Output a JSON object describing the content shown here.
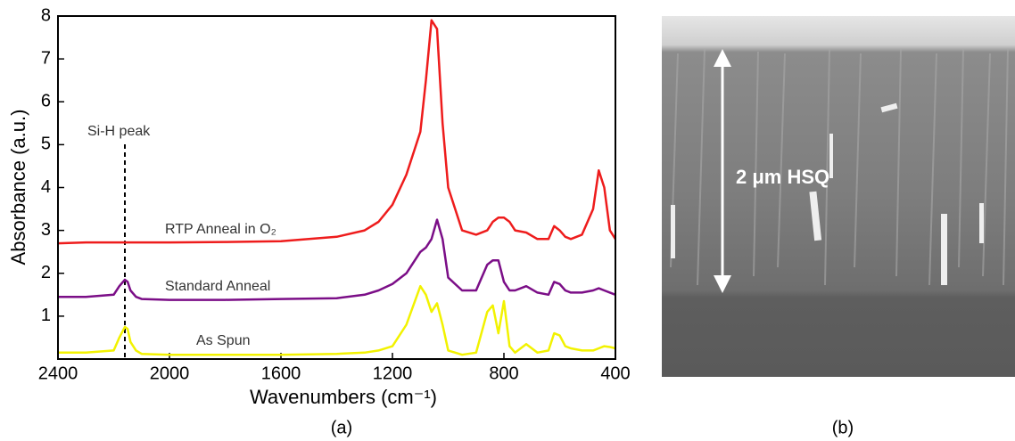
{
  "chart_data": {
    "type": "line",
    "x_label": "Wavenumbers (cm⁻¹)",
    "y_label": "Absorbance (a.u.)",
    "xlim": [
      2400,
      400
    ],
    "ylim": [
      0,
      8
    ],
    "xticks": [
      2400,
      2000,
      1600,
      1200,
      800,
      400
    ],
    "yticks": [
      1,
      2,
      3,
      4,
      5,
      6,
      7,
      8
    ],
    "x": [
      2400,
      2300,
      2200,
      2180,
      2160,
      2150,
      2140,
      2120,
      2100,
      2000,
      1800,
      1600,
      1400,
      1300,
      1250,
      1200,
      1150,
      1100,
      1080,
      1060,
      1040,
      1020,
      1000,
      950,
      900,
      860,
      840,
      820,
      800,
      780,
      760,
      720,
      680,
      640,
      620,
      600,
      580,
      560,
      520,
      480,
      460,
      440,
      420,
      400
    ],
    "series": [
      {
        "name": "RTP Anneal in O₂",
        "color": "#ee1c1c",
        "values": [
          2.7,
          2.72,
          2.72,
          2.72,
          2.72,
          2.72,
          2.72,
          2.72,
          2.72,
          2.72,
          2.73,
          2.75,
          2.85,
          3.0,
          3.2,
          3.6,
          4.3,
          5.3,
          6.5,
          7.9,
          7.7,
          5.5,
          4.0,
          3.0,
          2.9,
          3.0,
          3.2,
          3.3,
          3.3,
          3.2,
          3.0,
          2.95,
          2.8,
          2.8,
          3.1,
          3.0,
          2.85,
          2.8,
          2.9,
          3.5,
          4.4,
          4.0,
          3.0,
          2.8
        ]
      },
      {
        "name": "Standard Anneal",
        "color": "#7b0e87",
        "values": [
          1.45,
          1.45,
          1.5,
          1.7,
          1.85,
          1.8,
          1.6,
          1.45,
          1.4,
          1.38,
          1.38,
          1.4,
          1.42,
          1.5,
          1.6,
          1.75,
          2.0,
          2.5,
          2.6,
          2.8,
          3.25,
          2.8,
          1.9,
          1.6,
          1.6,
          2.2,
          2.3,
          2.3,
          1.8,
          1.6,
          1.6,
          1.7,
          1.55,
          1.5,
          1.8,
          1.75,
          1.6,
          1.55,
          1.55,
          1.6,
          1.65,
          1.6,
          1.55,
          1.5
        ]
      },
      {
        "name": "As Spun",
        "color": "#f2f200",
        "values": [
          0.15,
          0.15,
          0.2,
          0.5,
          0.75,
          0.7,
          0.4,
          0.2,
          0.12,
          0.1,
          0.1,
          0.1,
          0.12,
          0.15,
          0.2,
          0.3,
          0.8,
          1.7,
          1.5,
          1.1,
          1.3,
          0.8,
          0.2,
          0.1,
          0.15,
          1.1,
          1.25,
          0.6,
          1.35,
          0.3,
          0.15,
          0.35,
          0.15,
          0.2,
          0.6,
          0.55,
          0.3,
          0.25,
          0.2,
          0.2,
          0.25,
          0.3,
          0.28,
          0.25
        ]
      }
    ],
    "annotation": {
      "text": "Si-H peak",
      "x": 2160
    },
    "panel_label": "(a)"
  },
  "image": {
    "annotation": "2 μm HSQ",
    "panel_label": "(b)"
  }
}
